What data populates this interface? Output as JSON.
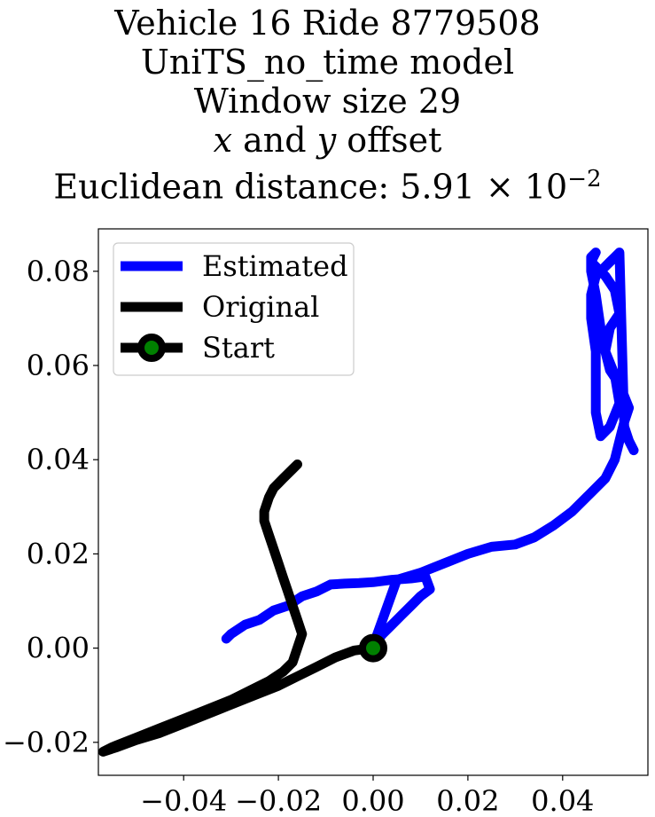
{
  "chart_data": {
    "type": "line",
    "title_lines": [
      "Vehicle 16 Ride 8779508",
      "UniTS_no_time model",
      "Window size 29",
      {
        "parts": [
          {
            "text": "x",
            "italic": true
          },
          {
            "text": " and "
          },
          {
            "text": "y",
            "italic": true
          },
          {
            "text": " offset"
          }
        ]
      },
      {
        "parts": [
          {
            "text": "Euclidean distance: 5.91 × 10"
          },
          {
            "text": "−2",
            "sup": true
          }
        ]
      }
    ],
    "xlabel": "",
    "ylabel": "",
    "xlim": [
      -0.058,
      0.058
    ],
    "ylim": [
      -0.027,
      0.089
    ],
    "xticks": [
      -0.04,
      -0.02,
      0.0,
      0.02,
      0.04
    ],
    "xtick_labels": [
      "−0.04",
      "−0.02",
      "0.00",
      "0.02",
      "0.04"
    ],
    "yticks": [
      -0.02,
      0.0,
      0.02,
      0.04,
      0.06,
      0.08
    ],
    "ytick_labels": [
      "−0.02",
      "0.00",
      "0.02",
      "0.04",
      "0.06",
      "0.08"
    ],
    "grid": false,
    "legend": {
      "position": "top-left",
      "entries": [
        {
          "label": "Estimated",
          "color": "#0000ff",
          "marker": "none"
        },
        {
          "label": "Original",
          "color": "#000000",
          "marker": "none"
        },
        {
          "label": "Start",
          "color": "#000000",
          "marker": "circle",
          "marker_face": "#008000"
        }
      ]
    },
    "series": [
      {
        "name": "Estimated",
        "color": "#0000ff",
        "x": [
          -0.031,
          -0.03,
          -0.027,
          -0.024,
          -0.021,
          -0.018,
          -0.015,
          -0.012,
          -0.009,
          -0.006,
          -0.003,
          0.0,
          0.004,
          0.008,
          0.011,
          0.012,
          0.01,
          0.008,
          0.006,
          0.004,
          0.002,
          0.0,
          0.005,
          0.01,
          0.015,
          0.02,
          0.025,
          0.03,
          0.034,
          0.038,
          0.042,
          0.046,
          0.049,
          0.051,
          0.052,
          0.053,
          0.054,
          0.052,
          0.05,
          0.049,
          0.05,
          0.052,
          0.051,
          0.049,
          0.047,
          0.046,
          0.046,
          0.047,
          0.046,
          0.046,
          0.047,
          0.048,
          0.049,
          0.051,
          0.052,
          0.05,
          0.048,
          0.047,
          0.047,
          0.047,
          0.046,
          0.046,
          0.047,
          0.049,
          0.05,
          0.051,
          0.052,
          0.053,
          0.054,
          0.055
        ],
        "y": [
          0.002,
          0.003,
          0.005,
          0.006,
          0.008,
          0.009,
          0.011,
          0.012,
          0.0135,
          0.0137,
          0.0138,
          0.014,
          0.0145,
          0.0148,
          0.0152,
          0.0125,
          0.011,
          0.009,
          0.007,
          0.005,
          0.003,
          0.0005,
          0.0145,
          0.016,
          0.018,
          0.02,
          0.0215,
          0.022,
          0.0235,
          0.026,
          0.029,
          0.033,
          0.036,
          0.04,
          0.044,
          0.048,
          0.051,
          0.056,
          0.059,
          0.063,
          0.068,
          0.071,
          0.076,
          0.079,
          0.081,
          0.082,
          0.083,
          0.084,
          0.082,
          0.08,
          0.075,
          0.068,
          0.063,
          0.058,
          0.052,
          0.047,
          0.045,
          0.05,
          0.057,
          0.063,
          0.07,
          0.075,
          0.079,
          0.081,
          0.082,
          0.083,
          0.084,
          0.047,
          0.044,
          0.042
        ]
      },
      {
        "name": "Original",
        "color": "#000000",
        "x": [
          0.0,
          -0.004,
          -0.008,
          -0.012,
          -0.016,
          -0.02,
          -0.025,
          -0.03,
          -0.035,
          -0.04,
          -0.045,
          -0.05,
          -0.054,
          -0.057,
          -0.055,
          -0.05,
          -0.045,
          -0.04,
          -0.035,
          -0.03,
          -0.026,
          -0.022,
          -0.019,
          -0.017,
          -0.016,
          -0.015,
          -0.016,
          -0.017,
          -0.018,
          -0.019,
          -0.02,
          -0.021,
          -0.022,
          -0.023,
          -0.023,
          -0.022,
          -0.021,
          -0.02,
          -0.019,
          -0.018,
          -0.017,
          -0.016
        ],
        "y": [
          0.0,
          -0.0005,
          -0.002,
          -0.004,
          -0.006,
          -0.008,
          -0.01,
          -0.012,
          -0.014,
          -0.016,
          -0.018,
          -0.0195,
          -0.021,
          -0.022,
          -0.021,
          -0.019,
          -0.017,
          -0.015,
          -0.013,
          -0.011,
          -0.009,
          -0.007,
          -0.005,
          -0.003,
          0.0,
          0.003,
          0.006,
          0.009,
          0.012,
          0.015,
          0.018,
          0.021,
          0.024,
          0.027,
          0.029,
          0.032,
          0.034,
          0.035,
          0.036,
          0.037,
          0.038,
          0.039
        ]
      }
    ],
    "start_point": {
      "x": 0.0,
      "y": 0.0,
      "label": "Start",
      "edge_color": "#000000",
      "face_color": "#008000"
    }
  }
}
